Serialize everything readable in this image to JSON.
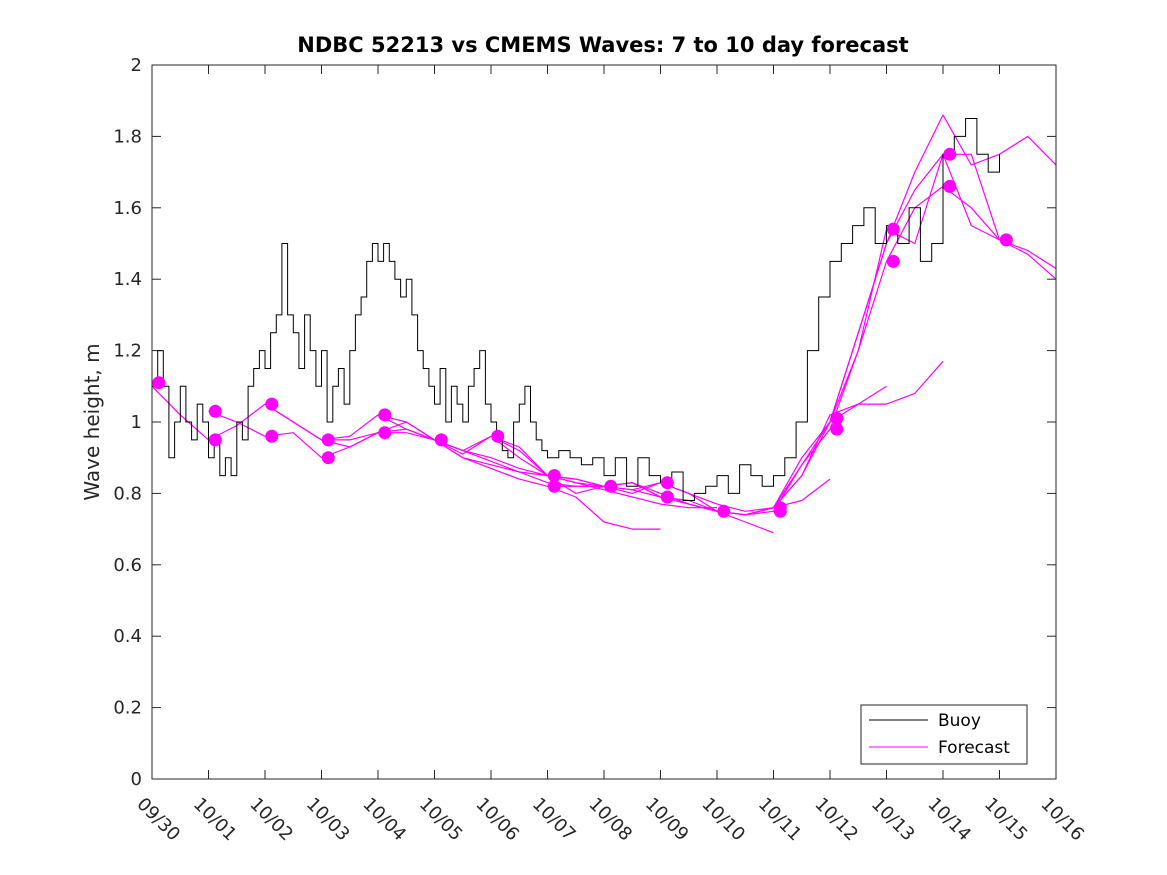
{
  "chart_data": {
    "type": "line",
    "title": "NDBC 52213 vs CMEMS Waves: 7 to 10 day forecast",
    "ylabel": "Wave height, m",
    "xlabel": "",
    "xlim": [
      0,
      16
    ],
    "ylim": [
      0,
      2
    ],
    "grid": false,
    "x_tick_labels": [
      "09/30",
      "10/01",
      "10/02",
      "10/03",
      "10/04",
      "10/05",
      "10/06",
      "10/07",
      "10/08",
      "10/09",
      "10/10",
      "10/11",
      "10/12",
      "10/13",
      "10/14",
      "10/15",
      "10/16"
    ],
    "y_ticks": [
      0,
      0.2,
      0.4,
      0.6,
      0.8,
      1,
      1.2,
      1.4,
      1.6,
      1.8,
      2
    ],
    "y_tick_labels": [
      "0",
      "0.2",
      "0.4",
      "0.6",
      "0.8",
      "1",
      "1.2",
      "1.4",
      "1.6",
      "1.8",
      "2"
    ],
    "legend": {
      "placement": "bottom-right",
      "entries": [
        {
          "label": "Buoy",
          "color": "#000000"
        },
        {
          "label": "Forecast",
          "color": "#ff00ff"
        }
      ]
    },
    "colors": {
      "buoy": "#000000",
      "forecast": "#ff00ff"
    },
    "buoy": {
      "name": "Buoy",
      "x": [
        0,
        0.1,
        0.2,
        0.3,
        0.4,
        0.5,
        0.6,
        0.7,
        0.8,
        0.9,
        1.0,
        1.1,
        1.2,
        1.3,
        1.4,
        1.5,
        1.6,
        1.7,
        1.8,
        1.9,
        2.0,
        2.1,
        2.2,
        2.3,
        2.4,
        2.5,
        2.6,
        2.7,
        2.8,
        2.9,
        3.0,
        3.1,
        3.2,
        3.3,
        3.4,
        3.5,
        3.6,
        3.7,
        3.8,
        3.9,
        4.0,
        4.1,
        4.2,
        4.3,
        4.4,
        4.5,
        4.6,
        4.7,
        4.8,
        4.9,
        5.0,
        5.1,
        5.2,
        5.3,
        5.4,
        5.5,
        5.6,
        5.7,
        5.8,
        5.9,
        6.0,
        6.1,
        6.2,
        6.3,
        6.4,
        6.5,
        6.6,
        6.7,
        6.8,
        6.9,
        7.0,
        7.2,
        7.4,
        7.6,
        7.8,
        8.0,
        8.2,
        8.4,
        8.6,
        8.8,
        9.0,
        9.2,
        9.4,
        9.6,
        9.8,
        10.0,
        10.2,
        10.4,
        10.6,
        10.8,
        11.0,
        11.2,
        11.4,
        11.6,
        11.8,
        12.0,
        12.2,
        12.4,
        12.6,
        12.8,
        13.0,
        13.2,
        13.4,
        13.6,
        13.8,
        14.0,
        14.2,
        14.4,
        14.6,
        14.8,
        15.0
      ],
      "y": [
        1.1,
        1.2,
        1.1,
        0.9,
        1.0,
        1.1,
        1.0,
        0.95,
        1.05,
        1.0,
        0.9,
        0.95,
        0.85,
        0.9,
        0.85,
        1.0,
        0.95,
        1.1,
        1.15,
        1.2,
        1.15,
        1.25,
        1.3,
        1.5,
        1.3,
        1.25,
        1.15,
        1.3,
        1.2,
        1.1,
        1.2,
        1.0,
        1.1,
        1.15,
        1.05,
        1.2,
        1.3,
        1.35,
        1.45,
        1.5,
        1.45,
        1.5,
        1.45,
        1.4,
        1.35,
        1.4,
        1.3,
        1.2,
        1.15,
        1.1,
        1.05,
        1.15,
        1.0,
        1.1,
        1.05,
        1.0,
        1.1,
        1.15,
        1.2,
        1.05,
        1.0,
        0.95,
        0.92,
        0.9,
        1.0,
        1.05,
        1.1,
        1.0,
        0.95,
        0.92,
        0.9,
        0.92,
        0.9,
        0.88,
        0.9,
        0.85,
        0.9,
        0.82,
        0.9,
        0.85,
        0.83,
        0.86,
        0.78,
        0.8,
        0.82,
        0.85,
        0.8,
        0.88,
        0.85,
        0.82,
        0.85,
        0.9,
        1.0,
        1.2,
        1.35,
        1.45,
        1.5,
        1.55,
        1.6,
        1.5,
        1.55,
        1.5,
        1.6,
        1.45,
        1.5,
        1.75,
        1.8,
        1.85,
        1.75,
        1.7,
        1.75
      ]
    },
    "forecast_series": [
      {
        "name": "Forecast",
        "x": [
          0,
          0.5,
          1.0,
          1.5,
          2.0,
          2.5,
          3.0,
          3.5,
          4.0,
          4.5,
          5.0,
          5.5,
          6.0,
          6.5,
          7.0,
          7.5,
          8.0,
          8.5,
          9.0
        ],
        "y": [
          1.1,
          1.02,
          0.95,
          0.99,
          1.05,
          1.0,
          0.95,
          0.93,
          0.97,
          0.97,
          0.95,
          0.9,
          0.87,
          0.84,
          0.82,
          0.79,
          0.72,
          0.7,
          0.7
        ]
      },
      {
        "name": "Forecast",
        "x": [
          1.0,
          1.5,
          2.0,
          2.5,
          3.0,
          3.5,
          4.0,
          4.5,
          5.0,
          5.5,
          6.0,
          6.5,
          7.0,
          7.5,
          8.0,
          8.5,
          9.0,
          9.5,
          10.0
        ],
        "y": [
          1.03,
          1.0,
          0.96,
          0.97,
          0.9,
          0.93,
          0.97,
          0.98,
          0.95,
          0.92,
          0.89,
          0.86,
          0.85,
          0.83,
          0.81,
          0.79,
          0.77,
          0.76,
          0.76
        ]
      },
      {
        "name": "Forecast",
        "x": [
          2.0,
          2.5,
          3.0,
          3.5,
          4.0,
          4.5,
          5.0,
          5.5,
          6.0,
          6.5,
          7.0,
          7.5,
          8.0,
          8.5,
          9.0,
          9.5,
          10.0,
          10.5,
          11.0
        ],
        "y": [
          1.05,
          1.0,
          0.95,
          0.96,
          1.02,
          1.0,
          0.95,
          0.91,
          0.96,
          0.93,
          0.85,
          0.8,
          0.82,
          0.83,
          0.79,
          0.77,
          0.75,
          0.72,
          0.69
        ]
      },
      {
        "name": "Forecast",
        "x": [
          3.0,
          3.5,
          4.0,
          4.5,
          5.0,
          5.5,
          6.0,
          6.5,
          7.0,
          7.5,
          8.0,
          8.5,
          9.0,
          9.5,
          10.0,
          10.5,
          11.0,
          11.5,
          12.0
        ],
        "y": [
          0.95,
          0.95,
          0.97,
          1.0,
          0.95,
          0.9,
          0.88,
          0.86,
          0.83,
          0.82,
          0.82,
          0.83,
          0.8,
          0.77,
          0.75,
          0.74,
          0.76,
          0.78,
          0.84
        ]
      },
      {
        "name": "Forecast",
        "x": [
          4.0,
          4.5,
          5.0,
          5.5,
          6.0,
          6.5,
          7.0,
          7.5,
          8.0,
          8.5,
          9.0,
          9.5,
          10.0,
          10.5,
          11.0,
          11.5,
          12.0,
          12.5,
          13.0
        ],
        "y": [
          1.02,
          0.98,
          0.95,
          0.92,
          0.9,
          0.87,
          0.85,
          0.84,
          0.82,
          0.81,
          0.83,
          0.8,
          0.77,
          0.75,
          0.76,
          0.9,
          1.0,
          1.05,
          1.1
        ]
      },
      {
        "name": "Forecast",
        "x": [
          5.0,
          5.5,
          6.0,
          6.5,
          7.0,
          7.5,
          8.0,
          8.5,
          9.0,
          9.5,
          10.0,
          10.5,
          11.0,
          11.5,
          12.0,
          12.5,
          13.0,
          13.5,
          14.0
        ],
        "y": [
          0.95,
          0.92,
          0.96,
          0.92,
          0.85,
          0.84,
          0.82,
          0.81,
          0.79,
          0.78,
          0.75,
          0.74,
          0.76,
          0.85,
          1.02,
          1.05,
          1.05,
          1.08,
          1.17
        ]
      },
      {
        "name": "Forecast",
        "x": [
          6.0,
          6.5,
          7.0,
          7.5,
          8.0,
          8.5,
          9.0,
          9.5,
          10.0,
          10.5,
          11.0,
          11.5,
          12.0,
          12.5,
          13.0,
          13.5,
          14.0,
          14.5,
          15.0
        ],
        "y": [
          0.96,
          0.9,
          0.85,
          0.83,
          0.82,
          0.83,
          0.79,
          0.77,
          0.75,
          0.74,
          0.76,
          0.88,
          1.0,
          1.2,
          1.54,
          1.5,
          1.75,
          1.75,
          1.51
        ]
      },
      {
        "name": "Forecast",
        "x": [
          7.0,
          7.5,
          8.0,
          8.5,
          9.0,
          9.5,
          10.0,
          10.5,
          11.0,
          11.5,
          12.0,
          12.5,
          13.0,
          13.5,
          14.0,
          14.5,
          15.0,
          15.5,
          16.0
        ],
        "y": [
          0.82,
          0.82,
          0.82,
          0.8,
          0.83,
          0.8,
          0.75,
          0.74,
          0.75,
          0.88,
          0.98,
          1.2,
          1.45,
          1.6,
          1.66,
          1.6,
          1.51,
          1.47,
          1.4
        ]
      },
      {
        "name": "Forecast",
        "x": [
          11.0,
          11.5,
          12.0,
          12.5,
          13.0,
          13.5,
          14.0,
          14.5,
          15.0,
          15.5,
          16.0
        ],
        "y": [
          0.76,
          0.85,
          1.0,
          1.25,
          1.5,
          1.7,
          1.86,
          1.72,
          1.75,
          1.8,
          1.72
        ]
      },
      {
        "name": "Forecast",
        "x": [
          12.0,
          12.5,
          13.0,
          13.5,
          14.0,
          14.5,
          15.0,
          15.5,
          16.0
        ],
        "y": [
          1.0,
          1.25,
          1.5,
          1.65,
          1.75,
          1.55,
          1.51,
          1.48,
          1.43
        ]
      }
    ],
    "forecast_markers": {
      "x": [
        0.12,
        1.12,
        1.12,
        2.12,
        2.12,
        3.12,
        3.12,
        4.12,
        4.12,
        5.12,
        6.12,
        7.12,
        7.12,
        8.12,
        9.12,
        9.12,
        10.12,
        11.12,
        11.12,
        12.12,
        12.12,
        13.12,
        13.12,
        14.12,
        14.12,
        15.12
      ],
      "y": [
        1.11,
        1.03,
        0.95,
        1.05,
        0.96,
        0.95,
        0.9,
        1.02,
        0.97,
        0.95,
        0.96,
        0.85,
        0.82,
        0.82,
        0.83,
        0.79,
        0.75,
        0.76,
        0.75,
        1.01,
        0.98,
        1.54,
        1.45,
        1.75,
        1.66,
        1.51
      ]
    }
  }
}
